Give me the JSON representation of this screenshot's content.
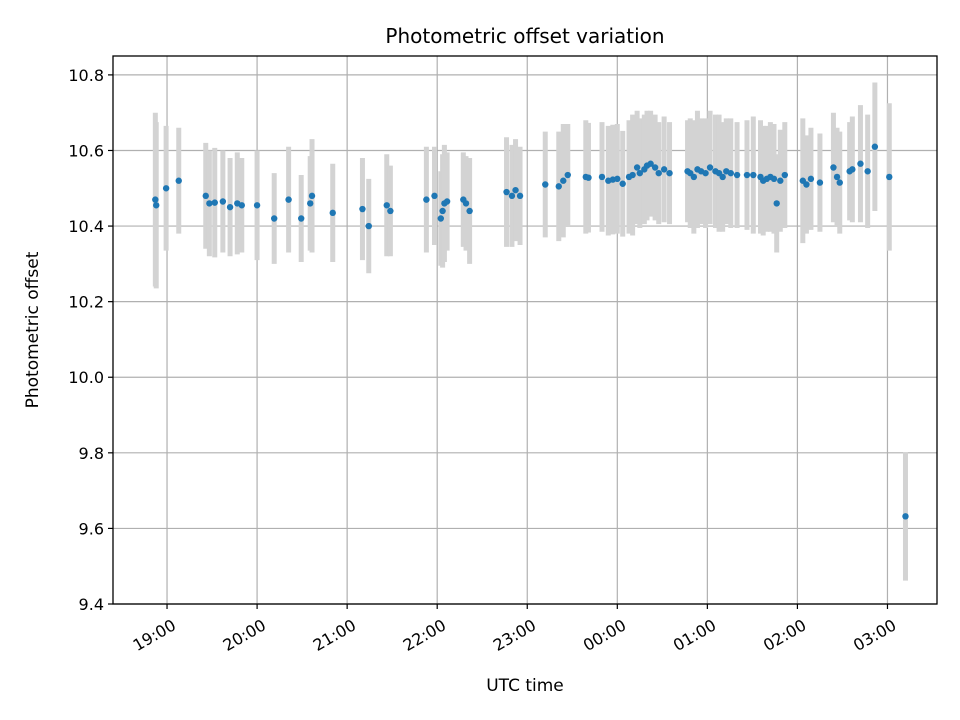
{
  "chart_data": {
    "type": "scatter",
    "title": "Photometric offset variation",
    "xlabel": "UTC time",
    "ylabel": "Photometric offset",
    "grid": true,
    "xlim": [
      18.4,
      27.55
    ],
    "ylim": [
      9.4,
      10.85
    ],
    "x_unit": "hours UTC (values past 24 are after midnight)",
    "x_ticks": [
      {
        "value": 19,
        "label": "19:00"
      },
      {
        "value": 20,
        "label": "20:00"
      },
      {
        "value": 21,
        "label": "21:00"
      },
      {
        "value": 22,
        "label": "22:00"
      },
      {
        "value": 23,
        "label": "23:00"
      },
      {
        "value": 24,
        "label": "00:00"
      },
      {
        "value": 25,
        "label": "01:00"
      },
      {
        "value": 26,
        "label": "02:00"
      },
      {
        "value": 27,
        "label": "03:00"
      }
    ],
    "y_ticks": [
      {
        "value": 9.4,
        "label": "9.4"
      },
      {
        "value": 9.6,
        "label": "9.6"
      },
      {
        "value": 9.8,
        "label": "9.8"
      },
      {
        "value": 10.0,
        "label": "10.0"
      },
      {
        "value": 10.2,
        "label": "10.2"
      },
      {
        "value": 10.4,
        "label": "10.4"
      },
      {
        "value": 10.6,
        "label": "10.6"
      },
      {
        "value": 10.8,
        "label": "10.8"
      }
    ],
    "point_color": "#1f77b4",
    "errorbar_color": "#d3d3d3",
    "points": [
      [
        18.87,
        10.47,
        0.23
      ],
      [
        18.88,
        10.455,
        0.22
      ],
      [
        18.99,
        10.5,
        0.165
      ],
      [
        19.13,
        10.52,
        0.14
      ],
      [
        19.43,
        10.48,
        0.14
      ],
      [
        19.47,
        10.46,
        0.14
      ],
      [
        19.53,
        10.462,
        0.145
      ],
      [
        19.62,
        10.465,
        0.135
      ],
      [
        19.7,
        10.45,
        0.13
      ],
      [
        19.78,
        10.46,
        0.135
      ],
      [
        19.83,
        10.455,
        0.125
      ],
      [
        20.0,
        10.455,
        0.145
      ],
      [
        20.19,
        10.42,
        0.12
      ],
      [
        20.35,
        10.47,
        0.14
      ],
      [
        20.49,
        10.42,
        0.115
      ],
      [
        20.59,
        10.46,
        0.125
      ],
      [
        20.61,
        10.48,
        0.15
      ],
      [
        20.84,
        10.435,
        0.13
      ],
      [
        21.17,
        10.445,
        0.135
      ],
      [
        21.24,
        10.4,
        0.125
      ],
      [
        21.44,
        10.455,
        0.135
      ],
      [
        21.48,
        10.44,
        0.12
      ],
      [
        21.88,
        10.47,
        0.14
      ],
      [
        21.97,
        10.48,
        0.13
      ],
      [
        22.04,
        10.42,
        0.125
      ],
      [
        22.06,
        10.44,
        0.15
      ],
      [
        22.08,
        10.46,
        0.155
      ],
      [
        22.11,
        10.465,
        0.13
      ],
      [
        22.29,
        10.47,
        0.125
      ],
      [
        22.32,
        10.46,
        0.125
      ],
      [
        22.36,
        10.44,
        0.14
      ],
      [
        22.77,
        10.49,
        0.145
      ],
      [
        22.83,
        10.48,
        0.135
      ],
      [
        22.87,
        10.495,
        0.135
      ],
      [
        22.92,
        10.48,
        0.13
      ],
      [
        23.2,
        10.51,
        0.14
      ],
      [
        23.35,
        10.505,
        0.145
      ],
      [
        23.4,
        10.52,
        0.15
      ],
      [
        23.45,
        10.535,
        0.135
      ],
      [
        23.65,
        10.53,
        0.15
      ],
      [
        23.68,
        10.528,
        0.145
      ],
      [
        23.83,
        10.53,
        0.145
      ],
      [
        23.9,
        10.52,
        0.145
      ],
      [
        23.95,
        10.523,
        0.145
      ],
      [
        24.0,
        10.525,
        0.145
      ],
      [
        24.06,
        10.512,
        0.14
      ],
      [
        24.13,
        10.53,
        0.15
      ],
      [
        24.17,
        10.535,
        0.16
      ],
      [
        24.22,
        10.555,
        0.15
      ],
      [
        24.25,
        10.54,
        0.145
      ],
      [
        24.3,
        10.55,
        0.145
      ],
      [
        24.33,
        10.56,
        0.145
      ],
      [
        24.37,
        10.565,
        0.14
      ],
      [
        24.42,
        10.555,
        0.14
      ],
      [
        24.46,
        10.54,
        0.135
      ],
      [
        24.52,
        10.55,
        0.14
      ],
      [
        24.58,
        10.54,
        0.135
      ],
      [
        24.78,
        10.545,
        0.135
      ],
      [
        24.81,
        10.54,
        0.145
      ],
      [
        24.85,
        10.53,
        0.15
      ],
      [
        24.89,
        10.55,
        0.155
      ],
      [
        24.93,
        10.545,
        0.14
      ],
      [
        24.98,
        10.54,
        0.145
      ],
      [
        25.03,
        10.555,
        0.15
      ],
      [
        25.09,
        10.545,
        0.15
      ],
      [
        25.13,
        10.54,
        0.155
      ],
      [
        25.17,
        10.53,
        0.145
      ],
      [
        25.21,
        10.545,
        0.14
      ],
      [
        25.26,
        10.54,
        0.145
      ],
      [
        25.33,
        10.535,
        0.14
      ],
      [
        25.44,
        10.535,
        0.145
      ],
      [
        25.51,
        10.535,
        0.155
      ],
      [
        25.59,
        10.53,
        0.15
      ],
      [
        25.62,
        10.52,
        0.145
      ],
      [
        25.66,
        10.525,
        0.14
      ],
      [
        25.7,
        10.53,
        0.145
      ],
      [
        25.74,
        10.525,
        0.145
      ],
      [
        25.77,
        10.46,
        0.13
      ],
      [
        25.81,
        10.52,
        0.135
      ],
      [
        25.86,
        10.535,
        0.14
      ],
      [
        26.06,
        10.52,
        0.165
      ],
      [
        26.1,
        10.51,
        0.13
      ],
      [
        26.15,
        10.525,
        0.135
      ],
      [
        26.25,
        10.515,
        0.13
      ],
      [
        26.4,
        10.555,
        0.145
      ],
      [
        26.44,
        10.53,
        0.13
      ],
      [
        26.47,
        10.515,
        0.135
      ],
      [
        26.58,
        10.545,
        0.13
      ],
      [
        26.61,
        10.55,
        0.14
      ],
      [
        26.7,
        10.565,
        0.155
      ],
      [
        26.78,
        10.545,
        0.15
      ],
      [
        26.86,
        10.61,
        0.17
      ],
      [
        27.02,
        10.53,
        0.195
      ],
      [
        27.2,
        9.632,
        0.17
      ]
    ]
  }
}
